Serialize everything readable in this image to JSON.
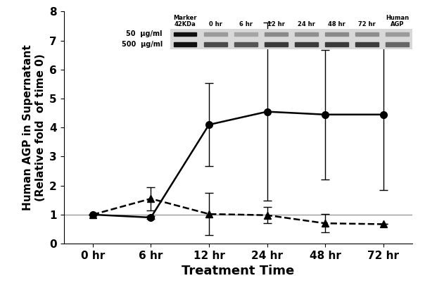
{
  "chart_data": {
    "type": "line",
    "x_label": "Treatment Time",
    "y_label": "Human AGP in Supernatant\n(Relative fold  of time 0)",
    "categories": [
      "0 hr",
      "6 hr",
      "12 hr",
      "24 hr",
      "48 hr",
      "72 hr"
    ],
    "series": [
      {
        "color": "#000000",
        "marker": "circle",
        "line_style": "solid",
        "values": [
          1.0,
          0.9,
          4.1,
          4.55,
          4.45,
          4.45
        ],
        "errors": [
          0.0,
          0.05,
          1.43,
          3.07,
          2.23,
          2.6
        ]
      },
      {
        "color": "#000000",
        "marker": "triangle",
        "line_style": "dashed",
        "values": [
          1.0,
          1.55,
          1.02,
          0.98,
          0.7,
          0.67
        ],
        "errors": [
          0.0,
          0.4,
          0.73,
          0.28,
          0.32,
          0.0
        ]
      }
    ],
    "reference_line": 1,
    "ylim": [
      0,
      8
    ],
    "yticks": [
      0,
      1,
      2,
      3,
      4,
      5,
      6,
      7,
      8
    ],
    "grid": false,
    "blot": {
      "lanes": [
        "Marker\n42KDa",
        "0 hr",
        "6 hr",
        "12 hr",
        "24 hr",
        "48 hr",
        "72 hr",
        "Human\nAGP"
      ],
      "rows": [
        "50  μg/ml",
        "500  μg/ml"
      ]
    }
  }
}
